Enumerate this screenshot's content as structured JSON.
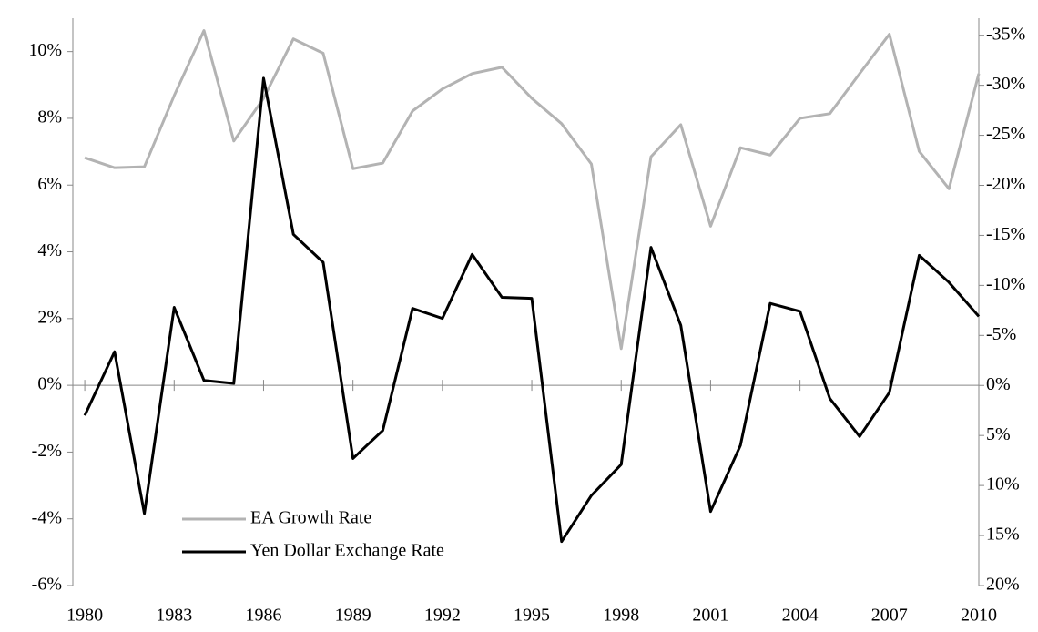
{
  "chart_data": {
    "type": "line",
    "x": [
      1980,
      1981,
      1982,
      1983,
      1984,
      1985,
      1986,
      1987,
      1988,
      1989,
      1990,
      1991,
      1992,
      1993,
      1994,
      1995,
      1996,
      1997,
      1998,
      1999,
      2000,
      2001,
      2002,
      2003,
      2004,
      2005,
      2006,
      2007,
      2008,
      2009,
      2010
    ],
    "series": [
      {
        "name": "EA Growth Rate",
        "color": "#b3b3b3",
        "axis": "y",
        "values": [
          6.82,
          6.52,
          6.55,
          8.68,
          10.63,
          7.32,
          8.6,
          10.38,
          9.95,
          6.49,
          6.66,
          8.22,
          8.88,
          9.34,
          9.53,
          8.6,
          7.84,
          6.63,
          1.1,
          6.85,
          7.81,
          4.77,
          7.12,
          6.9,
          8.0,
          8.14,
          9.34,
          10.52,
          7.01,
          5.89,
          9.34
        ]
      },
      {
        "name": "Yen Dollar Exchange Rate",
        "color": "#000000",
        "axis": "y2",
        "values": [
          3.0,
          -3.37,
          12.8,
          -7.8,
          -0.5,
          -0.2,
          -30.7,
          -15.1,
          -12.3,
          7.3,
          4.5,
          -7.7,
          -6.7,
          -13.1,
          -8.8,
          -8.7,
          15.6,
          11.0,
          7.9,
          -13.8,
          -6.0,
          12.6,
          6.0,
          -8.2,
          -7.4,
          1.3,
          5.1,
          0.7,
          -13.0,
          -10.3,
          -6.9
        ]
      }
    ],
    "xlim": [
      1979.6,
      2010
    ],
    "xticks": [
      1980,
      1983,
      1986,
      1989,
      1992,
      1995,
      1998,
      2001,
      2004,
      2007,
      2010
    ],
    "ylim": [
      -6,
      11
    ],
    "yticks": [
      {
        "value": -6,
        "label": "-6%"
      },
      {
        "value": -4,
        "label": "-4%"
      },
      {
        "value": -2,
        "label": "-2%"
      },
      {
        "value": 0,
        "label": "0%"
      },
      {
        "value": 2,
        "label": "2%"
      },
      {
        "value": 4,
        "label": "4%"
      },
      {
        "value": 6,
        "label": "6%"
      },
      {
        "value": 8,
        "label": "8%"
      },
      {
        "value": 10,
        "label": "10%"
      }
    ],
    "y2lim": [
      20,
      -36.7
    ],
    "y2ticks": [
      {
        "value": 20,
        "label": "20%"
      },
      {
        "value": 15,
        "label": "15%"
      },
      {
        "value": 10,
        "label": "10%"
      },
      {
        "value": 5,
        "label": "5%"
      },
      {
        "value": 0,
        "label": "0%"
      },
      {
        "value": -5,
        "label": "-5%"
      },
      {
        "value": -10,
        "label": "-10%"
      },
      {
        "value": -15,
        "label": "-15%"
      },
      {
        "value": -20,
        "label": "-20%"
      },
      {
        "value": -25,
        "label": "-25%"
      },
      {
        "value": -30,
        "label": "-30%"
      },
      {
        "value": -35,
        "label": "-35%"
      }
    ],
    "legend": "lower-left"
  }
}
